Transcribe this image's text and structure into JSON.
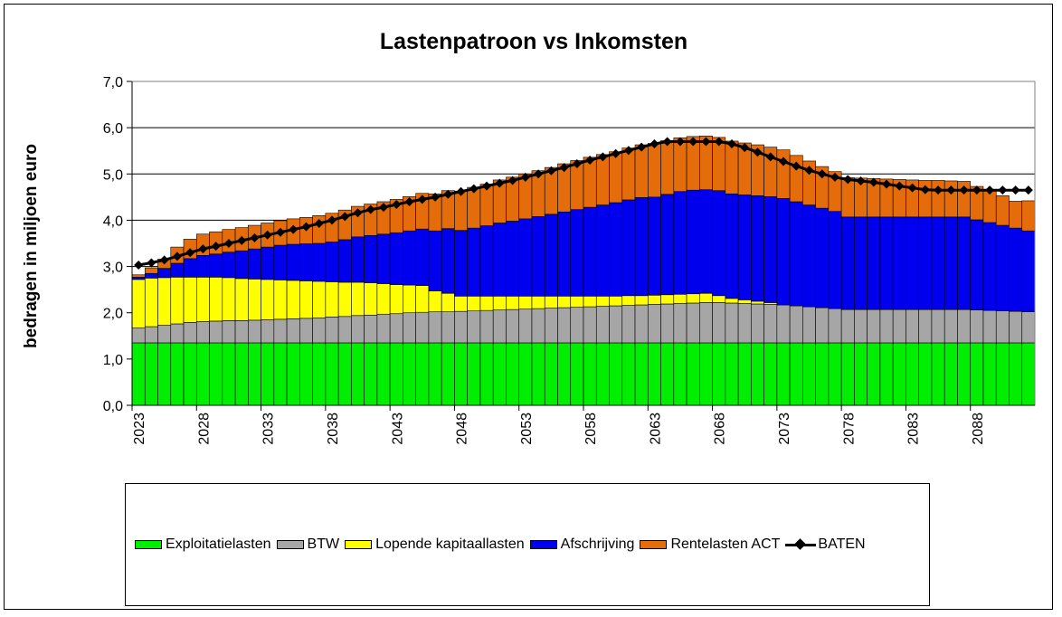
{
  "chart_data": {
    "type": "bar",
    "stacked": true,
    "title": "Lastenpatroon vs Inkomsten",
    "xlabel": "",
    "ylabel": "bedragen in miljoen euro",
    "ylim": [
      0,
      7
    ],
    "yticks": [
      "0,0",
      "1,0",
      "2,0",
      "3,0",
      "4,0",
      "5,0",
      "6,0",
      "7,0"
    ],
    "xtick_labels": [
      "2023",
      "2028",
      "2033",
      "2038",
      "2043",
      "2048",
      "2053",
      "2058",
      "2063",
      "2068",
      "2073",
      "2078",
      "2083",
      "2088"
    ],
    "grid": true,
    "legend_position": "bottom",
    "categories": [
      2023,
      2024,
      2025,
      2026,
      2027,
      2028,
      2029,
      2030,
      2031,
      2032,
      2033,
      2034,
      2035,
      2036,
      2037,
      2038,
      2039,
      2040,
      2041,
      2042,
      2043,
      2044,
      2045,
      2046,
      2047,
      2048,
      2049,
      2050,
      2051,
      2052,
      2053,
      2054,
      2055,
      2056,
      2057,
      2058,
      2059,
      2060,
      2061,
      2062,
      2063,
      2064,
      2065,
      2066,
      2067,
      2068,
      2069,
      2070,
      2071,
      2072,
      2073,
      2074,
      2075,
      2076,
      2077,
      2078,
      2079,
      2080,
      2081,
      2082,
      2083,
      2084,
      2085,
      2086,
      2087,
      2088,
      2089,
      2090,
      2091,
      2092
    ],
    "series": [
      {
        "name": "Exploitatielasten",
        "kind": "bar",
        "color": "#00ee00",
        "values": [
          1.35,
          1.35,
          1.35,
          1.35,
          1.35,
          1.35,
          1.35,
          1.35,
          1.35,
          1.35,
          1.35,
          1.35,
          1.35,
          1.35,
          1.35,
          1.35,
          1.35,
          1.35,
          1.35,
          1.35,
          1.35,
          1.35,
          1.35,
          1.35,
          1.35,
          1.35,
          1.35,
          1.35,
          1.35,
          1.35,
          1.35,
          1.35,
          1.35,
          1.35,
          1.35,
          1.35,
          1.35,
          1.35,
          1.35,
          1.35,
          1.35,
          1.35,
          1.35,
          1.35,
          1.35,
          1.35,
          1.35,
          1.35,
          1.35,
          1.35,
          1.35,
          1.35,
          1.35,
          1.35,
          1.35,
          1.35,
          1.35,
          1.35,
          1.35,
          1.35,
          1.35,
          1.35,
          1.35,
          1.35,
          1.35,
          1.35,
          1.35,
          1.35,
          1.35,
          1.35
        ]
      },
      {
        "name": "BTW",
        "kind": "bar",
        "color": "#a6a6a6",
        "values": [
          0.32,
          0.35,
          0.38,
          0.41,
          0.44,
          0.46,
          0.47,
          0.48,
          0.48,
          0.49,
          0.5,
          0.51,
          0.52,
          0.53,
          0.54,
          0.56,
          0.57,
          0.59,
          0.6,
          0.62,
          0.63,
          0.65,
          0.66,
          0.67,
          0.67,
          0.68,
          0.69,
          0.7,
          0.71,
          0.72,
          0.73,
          0.74,
          0.75,
          0.76,
          0.77,
          0.78,
          0.79,
          0.8,
          0.81,
          0.82,
          0.83,
          0.84,
          0.85,
          0.86,
          0.87,
          0.87,
          0.86,
          0.85,
          0.84,
          0.83,
          0.82,
          0.8,
          0.78,
          0.76,
          0.74,
          0.72,
          0.72,
          0.72,
          0.72,
          0.72,
          0.72,
          0.72,
          0.72,
          0.72,
          0.72,
          0.71,
          0.7,
          0.69,
          0.68,
          0.67
        ]
      },
      {
        "name": "Lopende kapitaallasten",
        "kind": "bar",
        "color": "#ffff00",
        "values": [
          1.05,
          1.05,
          1.03,
          1.01,
          0.98,
          0.96,
          0.95,
          0.93,
          0.91,
          0.89,
          0.87,
          0.85,
          0.83,
          0.81,
          0.79,
          0.76,
          0.74,
          0.72,
          0.7,
          0.66,
          0.63,
          0.6,
          0.58,
          0.45,
          0.4,
          0.33,
          0.32,
          0.31,
          0.3,
          0.29,
          0.28,
          0.27,
          0.26,
          0.25,
          0.24,
          0.23,
          0.22,
          0.21,
          0.21,
          0.2,
          0.2,
          0.2,
          0.2,
          0.2,
          0.2,
          0.15,
          0.1,
          0.08,
          0.06,
          0.04,
          0.0,
          0.0,
          0.0,
          0.0,
          0.0,
          0.0,
          0.0,
          0.0,
          0.0,
          0.0,
          0.0,
          0.0,
          0.0,
          0.0,
          0.0,
          0.0,
          0.0,
          0.0,
          0.0,
          0.0
        ]
      },
      {
        "name": "Afschrijving",
        "kind": "bar",
        "color": "#0000ee",
        "values": [
          0.05,
          0.1,
          0.2,
          0.3,
          0.4,
          0.47,
          0.5,
          0.55,
          0.6,
          0.65,
          0.7,
          0.75,
          0.78,
          0.8,
          0.82,
          0.86,
          0.92,
          0.98,
          1.02,
          1.07,
          1.12,
          1.17,
          1.22,
          1.3,
          1.4,
          1.42,
          1.47,
          1.52,
          1.58,
          1.62,
          1.67,
          1.72,
          1.77,
          1.82,
          1.87,
          1.92,
          1.97,
          2.02,
          2.07,
          2.12,
          2.12,
          2.17,
          2.22,
          2.24,
          2.24,
          2.27,
          2.26,
          2.27,
          2.28,
          2.29,
          2.3,
          2.25,
          2.2,
          2.15,
          2.1,
          2.0,
          2.0,
          2.0,
          2.0,
          2.0,
          2.0,
          2.0,
          2.0,
          2.0,
          2.0,
          1.95,
          1.9,
          1.85,
          1.8,
          1.75
        ]
      },
      {
        "name": "Rentelasten ACT",
        "kind": "bar",
        "color": "#e46c0a",
        "values": [
          0.05,
          0.12,
          0.2,
          0.35,
          0.42,
          0.46,
          0.48,
          0.49,
          0.5,
          0.51,
          0.52,
          0.53,
          0.55,
          0.57,
          0.6,
          0.62,
          0.64,
          0.66,
          0.68,
          0.7,
          0.72,
          0.74,
          0.77,
          0.8,
          0.82,
          0.85,
          0.88,
          0.9,
          0.93,
          0.95,
          0.97,
          0.99,
          1.01,
          1.04,
          1.06,
          1.08,
          1.09,
          1.1,
          1.12,
          1.14,
          1.16,
          1.16,
          1.16,
          1.16,
          1.16,
          1.15,
          1.14,
          1.12,
          1.1,
          1.07,
          1.05,
          1.0,
          0.95,
          0.9,
          0.86,
          0.85,
          0.84,
          0.83,
          0.82,
          0.81,
          0.8,
          0.79,
          0.79,
          0.78,
          0.77,
          0.72,
          0.68,
          0.64,
          0.58,
          0.65
        ]
      },
      {
        "name": "BATEN",
        "kind": "line",
        "color": "#000000",
        "values": [
          3.03,
          3.08,
          3.14,
          3.22,
          3.3,
          3.38,
          3.44,
          3.5,
          3.56,
          3.62,
          3.68,
          3.74,
          3.8,
          3.86,
          3.93,
          4.0,
          4.08,
          4.16,
          4.23,
          4.28,
          4.34,
          4.4,
          4.45,
          4.5,
          4.56,
          4.62,
          4.68,
          4.74,
          4.8,
          4.86,
          4.93,
          5.0,
          5.07,
          5.14,
          5.22,
          5.3,
          5.37,
          5.44,
          5.51,
          5.58,
          5.65,
          5.7,
          5.7,
          5.7,
          5.7,
          5.7,
          5.65,
          5.57,
          5.47,
          5.37,
          5.27,
          5.17,
          5.08,
          5.0,
          4.93,
          4.88,
          4.85,
          4.82,
          4.78,
          4.74,
          4.7,
          4.66,
          4.65,
          4.65,
          4.65,
          4.65,
          4.65,
          4.65,
          4.65,
          4.65
        ]
      }
    ]
  }
}
